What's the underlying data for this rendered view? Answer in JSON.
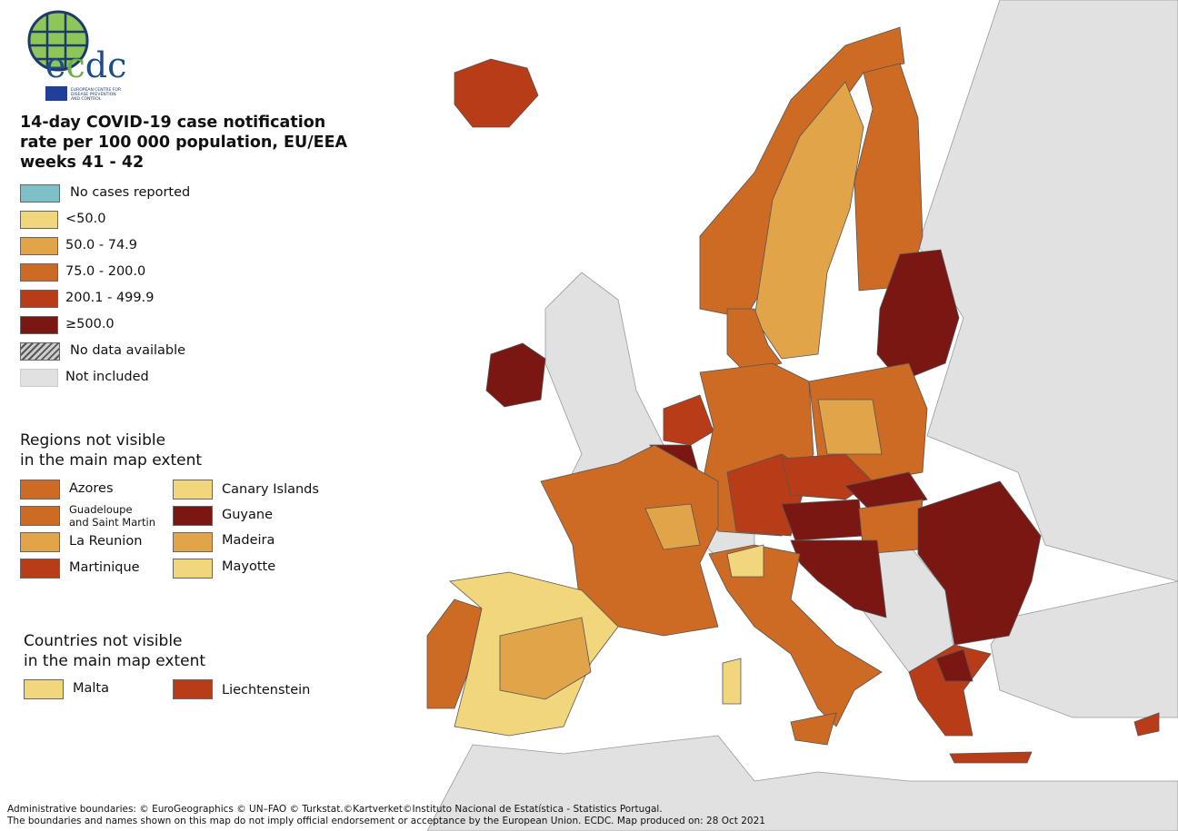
{
  "logo": {
    "text": "ecdc",
    "subtitle": "EUROPEAN CENTRE FOR DISEASE PREVENTION AND CONTROL"
  },
  "title": [
    "14-day COVID-19 case notification",
    "rate per 100 000 population, EU/EEA",
    "weeks 41 - 42"
  ],
  "colors": {
    "no_cases": "#7fbfc8",
    "lt50": "#f2d67b",
    "r50_75": "#e2a448",
    "r75_200": "#cd6a24",
    "r200_500": "#b73c17",
    "ge500": "#7a1713",
    "not_included": "#e1e1e1",
    "sea": "#ffffff"
  },
  "legend": [
    {
      "label": "No cases reported",
      "color": "no_cases"
    },
    {
      "label": "<50.0",
      "color": "lt50"
    },
    {
      "label": "50.0 - 74.9",
      "color": "r50_75"
    },
    {
      "label": "75.0 - 200.0",
      "color": "r75_200"
    },
    {
      "label": "200.1 - 499.9",
      "color": "r200_500"
    },
    {
      "label": "≥500.0",
      "color": "ge500"
    },
    {
      "label": "No data available",
      "color": "hatch"
    },
    {
      "label": "Not included",
      "color": "not_included"
    }
  ],
  "regions_heading": [
    "Regions not visible",
    "in the main map extent"
  ],
  "regions": [
    {
      "label": "Azores",
      "color": "r75_200"
    },
    {
      "label": "Guadeloupe and Saint Martin",
      "label1": "Guadeloupe",
      "label2": "and Saint Martin",
      "color": "r75_200"
    },
    {
      "label": "La Reunion",
      "color": "r50_75"
    },
    {
      "label": "Martinique",
      "color": "r200_500"
    },
    {
      "label": "Canary Islands",
      "color": "lt50"
    },
    {
      "label": "Guyane",
      "color": "ge500"
    },
    {
      "label": "Madeira",
      "color": "r50_75"
    },
    {
      "label": "Mayotte",
      "color": "lt50"
    }
  ],
  "countries_heading": [
    "Countries not visible",
    "in the main map extent"
  ],
  "countries": [
    {
      "label": "Malta",
      "color": "lt50"
    },
    {
      "label": "Liechtenstein",
      "color": "r200_500"
    }
  ],
  "footer": [
    "Administrative boundaries: © EuroGeographics © UN–FAO © Turkstat.©Kartverket©Instituto Nacional de Estatística - Statistics Portugal.",
    "The boundaries and names shown on this map do not imply official endorsement or acceptance by the European Union. ECDC. Map produced on: 28 Oct 2021"
  ]
}
